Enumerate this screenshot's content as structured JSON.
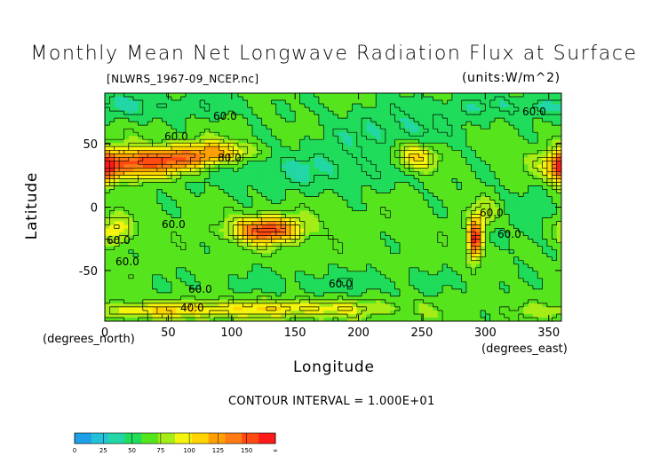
{
  "chart_data": {
    "type": "heatmap",
    "title": "Monthly Mean Net Longwave Radiation Flux at Surface",
    "file_label": "[NLWRS_1967-09_NCEP.nc]",
    "units_label": "(units:W/m^2)",
    "xlabel": "Longitude",
    "ylabel": "Latitude",
    "x_unit_label": "(degrees_east)",
    "y_unit_label": "(degrees_north)",
    "xlim": [
      0,
      360
    ],
    "ylim": [
      -90,
      90
    ],
    "x_ticks": [
      0,
      50,
      100,
      150,
      200,
      250,
      300,
      350
    ],
    "y_ticks": [
      50,
      0,
      -50
    ],
    "contour_interval_text": "CONTOUR INTERVAL = 1.000E+01",
    "contour_labels": [
      "40.0",
      "60.0",
      "60.0",
      "80.0",
      "60.0",
      "60.0",
      "60.0",
      "60.0",
      "60.0",
      "40.0",
      "60.0",
      "60.0",
      "60.0",
      "60.0"
    ],
    "colorbar": {
      "ticks": [
        "0",
        "25",
        "50",
        "75",
        "100",
        "125",
        "150",
        "∞"
      ],
      "colors": [
        "#1ea0e6",
        "#21c2d8",
        "#22d6a6",
        "#1fdc5a",
        "#56e51c",
        "#a6ec16",
        "#f4f40c",
        "#ffd400",
        "#ffa000",
        "#ff7a14",
        "#ff4a10",
        "#ff1a1a"
      ]
    }
  }
}
